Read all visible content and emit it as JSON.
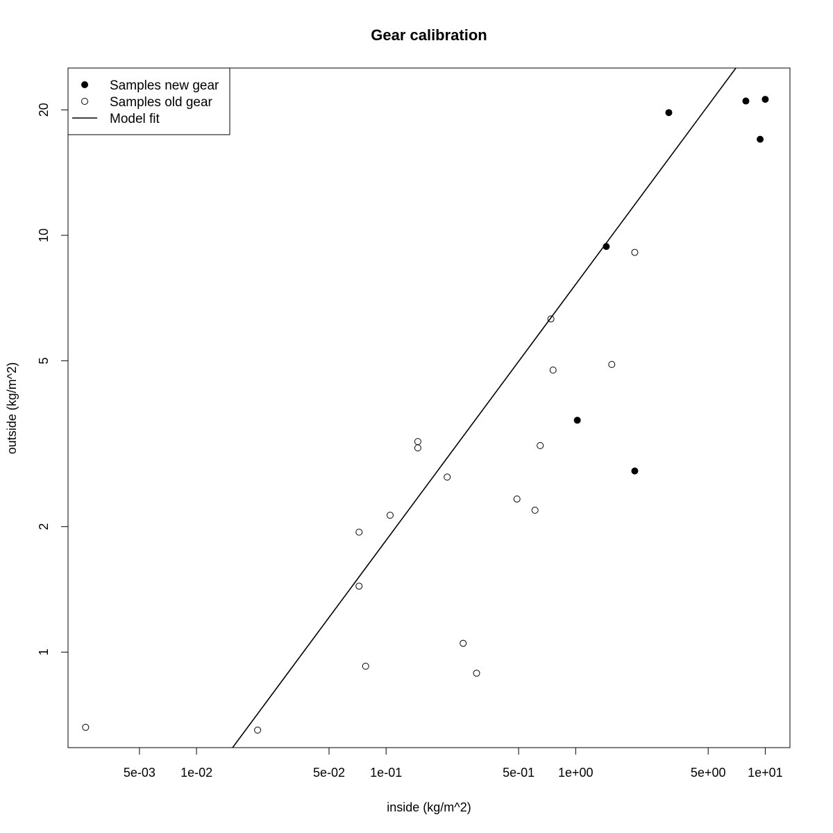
{
  "chart_data": {
    "type": "scatter",
    "title": "Gear calibration",
    "xlabel": "inside (kg/m^2)",
    "ylabel": "outside (kg/m^2)",
    "x_scale": "log",
    "y_scale": "log",
    "xlim": [
      0.0021,
      13.5
    ],
    "ylim": [
      0.59,
      25.2
    ],
    "x_ticks": [
      {
        "value": 0.005,
        "label": "5e-03"
      },
      {
        "value": 0.01,
        "label": "1e-02"
      },
      {
        "value": 0.05,
        "label": "5e-02"
      },
      {
        "value": 0.1,
        "label": "1e-01"
      },
      {
        "value": 0.5,
        "label": "5e-01"
      },
      {
        "value": 1,
        "label": "1e+00"
      },
      {
        "value": 5,
        "label": "5e+00"
      },
      {
        "value": 10,
        "label": "1e+01"
      }
    ],
    "y_ticks": [
      {
        "value": 1,
        "label": "1"
      },
      {
        "value": 2,
        "label": "2"
      },
      {
        "value": 5,
        "label": "5"
      },
      {
        "value": 10,
        "label": "10"
      },
      {
        "value": 20,
        "label": "20"
      }
    ],
    "grid": false,
    "legend_position": "top-left",
    "legend": [
      {
        "label": "Samples new gear",
        "symbol": "filled-circle"
      },
      {
        "label": "Samples old gear",
        "symbol": "open-circle"
      },
      {
        "label": "Model fit",
        "symbol": "line"
      }
    ],
    "series": [
      {
        "name": "Samples new gear",
        "marker": "filled-circle",
        "points": [
          {
            "x": 1.45,
            "y": 9.4
          },
          {
            "x": 3.1,
            "y": 19.7
          },
          {
            "x": 7.9,
            "y": 21.0
          },
          {
            "x": 9.4,
            "y": 17.0
          },
          {
            "x": 10.0,
            "y": 21.2
          },
          {
            "x": 1.02,
            "y": 3.6
          },
          {
            "x": 2.05,
            "y": 2.72
          }
        ]
      },
      {
        "name": "Samples old gear",
        "marker": "open-circle",
        "points": [
          {
            "x": 0.0026,
            "y": 0.66
          },
          {
            "x": 0.021,
            "y": 0.65
          },
          {
            "x": 0.072,
            "y": 1.94
          },
          {
            "x": 0.072,
            "y": 1.44
          },
          {
            "x": 0.078,
            "y": 0.925
          },
          {
            "x": 0.105,
            "y": 2.13
          },
          {
            "x": 0.147,
            "y": 3.2
          },
          {
            "x": 0.147,
            "y": 3.09
          },
          {
            "x": 0.21,
            "y": 2.63
          },
          {
            "x": 0.255,
            "y": 1.05
          },
          {
            "x": 0.3,
            "y": 0.89
          },
          {
            "x": 0.49,
            "y": 2.33
          },
          {
            "x": 0.61,
            "y": 2.19
          },
          {
            "x": 0.65,
            "y": 3.13
          },
          {
            "x": 0.74,
            "y": 6.3
          },
          {
            "x": 0.76,
            "y": 4.75
          },
          {
            "x": 1.55,
            "y": 4.9
          },
          {
            "x": 2.05,
            "y": 9.1
          }
        ]
      },
      {
        "name": "Model fit",
        "type": "line",
        "points": [
          {
            "x": 0.0155,
            "y": 0.59
          },
          {
            "x": 7.0,
            "y": 25.2
          }
        ]
      }
    ]
  }
}
